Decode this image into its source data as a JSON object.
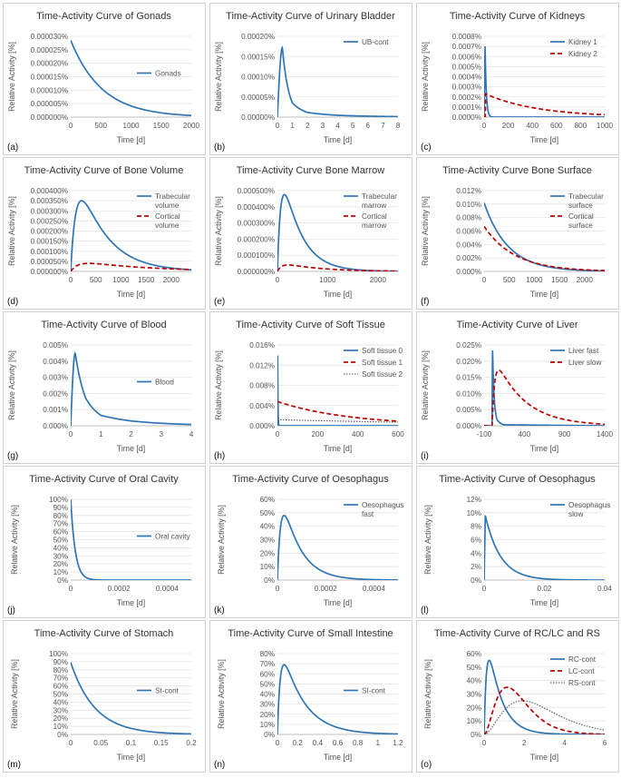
{
  "chart_data": [
    {
      "id": "a",
      "type": "line",
      "panel_label": "(a)",
      "title": "Time-Activity Curve of Gonads",
      "xlabel": "Time [d]",
      "ylabel": "Relative Activity [%]",
      "xticks": [
        "0",
        "500",
        "1000",
        "1500",
        "2000"
      ],
      "xlim": [
        0,
        2000
      ],
      "yticks": [
        "0.000000%",
        "0.000005%",
        "0.000010%",
        "0.000015%",
        "0.000020%",
        "0.000025%",
        "0.000030%"
      ],
      "ylim": [
        0,
        3e-05
      ],
      "legend_position": "center-right",
      "series": [
        {
          "name": "Gonads",
          "color": "#2e75b6",
          "dash": "solid",
          "shape": {
            "kind": "exp_decay",
            "peak_x": 0,
            "peak": 2.85e-05,
            "halflife": 360
          }
        }
      ]
    },
    {
      "id": "b",
      "type": "line",
      "panel_label": "(b)",
      "title": "Time-Activity Curve of Urinary Bladder",
      "xlabel": "Time [d]",
      "ylabel": "Relative Activity [%]",
      "xticks": [
        "0",
        "1",
        "2",
        "3",
        "4",
        "5",
        "6",
        "7",
        "8"
      ],
      "xlim": [
        0,
        8
      ],
      "yticks": [
        "0.00000%",
        "0.00005%",
        "0.00010%",
        "0.00015%",
        "0.00020%"
      ],
      "ylim": [
        0,
        0.0002
      ],
      "legend_position": "top-right",
      "series": [
        {
          "name": "UB-cont",
          "color": "#2e75b6",
          "dash": "solid",
          "shape": {
            "kind": "rise_decay",
            "peak_x": 0.33,
            "peak": 0.000172,
            "tail": [
              [
                1,
                3.5e-05
              ],
              [
                2,
                1.15e-05
              ],
              [
                4,
                4.5e-06
              ],
              [
                8,
                1.2e-06
              ]
            ]
          }
        }
      ]
    },
    {
      "id": "c",
      "type": "line",
      "panel_label": "(c)",
      "title": "Time-Activity Curve of Kidneys",
      "xlabel": "Time [d]",
      "ylabel": "Relative Activity [%]",
      "xticks": [
        "0",
        "200",
        "400",
        "600",
        "800",
        "1000"
      ],
      "xlim": [
        0,
        1000
      ],
      "yticks": [
        "0.0000%",
        "0.0001%",
        "0.0002%",
        "0.0003%",
        "0.0004%",
        "0.0005%",
        "0.0006%",
        "0.0007%",
        "0.0008%"
      ],
      "ylim": [
        0,
        0.0008
      ],
      "legend_position": "top-right",
      "series": [
        {
          "name": "Kidney 1",
          "color": "#2e75b6",
          "dash": "solid",
          "shape": {
            "kind": "spike",
            "peak_x": 8,
            "peak": 0.0007,
            "halflife": 7
          }
        },
        {
          "name": "Kidney 2",
          "color": "#c00000",
          "dash": "dash",
          "shape": {
            "kind": "exp_decay",
            "peak_x": 12,
            "peak": 0.00023,
            "halflife": 300
          }
        }
      ]
    },
    {
      "id": "d",
      "type": "line",
      "panel_label": "(d)",
      "title": "Time-Activity Curve of Bone Volume",
      "xlabel": "Time [d]",
      "ylabel": "Relative Activity [%]",
      "xticks": [
        "0",
        "500",
        "1000",
        "1500",
        "2000"
      ],
      "xlim": [
        0,
        2400
      ],
      "yticks": [
        "0.000000%",
        "0.000050%",
        "0.000100%",
        "0.000150%",
        "0.000200%",
        "0.000250%",
        "0.000300%",
        "0.000350%",
        "0.000400%"
      ],
      "ylim": [
        0,
        0.0004
      ],
      "legend_position": "top-right",
      "series": [
        {
          "name": "Trabecular volume",
          "color": "#2e75b6",
          "dash": "solid",
          "shape": {
            "kind": "bateman",
            "peak_x": 400,
            "peak": 0.00035,
            "halflife": 380
          }
        },
        {
          "name": "Cortical volume",
          "color": "#c00000",
          "dash": "dash",
          "shape": {
            "kind": "bateman",
            "peak_x": 500,
            "peak": 4e-05,
            "halflife": 900
          }
        }
      ]
    },
    {
      "id": "e",
      "type": "line",
      "panel_label": "(e)",
      "title": "Time-Activity Curve Bone Marrow",
      "xlabel": "Time [d]",
      "ylabel": "Relative Activity [%]",
      "xticks": [
        "0",
        "1000",
        "2000"
      ],
      "xlim": [
        0,
        2400
      ],
      "yticks": [
        "0.000000%",
        "0.000100%",
        "0.000200%",
        "0.000300%",
        "0.000400%",
        "0.000500%"
      ],
      "ylim": [
        0,
        0.0005
      ],
      "legend_position": "top-right",
      "series": [
        {
          "name": "Trabecular marrow",
          "color": "#2e75b6",
          "dash": "solid",
          "shape": {
            "kind": "bateman",
            "peak_x": 250,
            "peak": 0.000475,
            "halflife": 250
          }
        },
        {
          "name": "Cortical marrow",
          "color": "#c00000",
          "dash": "dash",
          "shape": {
            "kind": "bateman",
            "peak_x": 300,
            "peak": 4e-05,
            "halflife": 500
          }
        }
      ]
    },
    {
      "id": "f",
      "type": "line",
      "panel_label": "(f)",
      "title": "Time-Activity Curve Bone Surface",
      "xlabel": "Time [d]",
      "ylabel": "Relative Activity [%]",
      "xticks": [
        "0",
        "500",
        "1000",
        "1500",
        "2000"
      ],
      "xlim": [
        0,
        2400
      ],
      "yticks": [
        "0.000%",
        "0.002%",
        "0.004%",
        "0.006%",
        "0.008%",
        "0.010%",
        "0.012%"
      ],
      "ylim": [
        0,
        0.012
      ],
      "legend_position": "top-right",
      "series": [
        {
          "name": "Trabecular surface",
          "color": "#2e75b6",
          "dash": "solid",
          "shape": {
            "kind": "exp_decay",
            "peak_x": 0,
            "peak": 0.0102,
            "halflife": 330
          }
        },
        {
          "name": "Cortical surface",
          "color": "#c00000",
          "dash": "dash",
          "shape": {
            "kind": "exp_decay",
            "peak_x": 0,
            "peak": 0.0067,
            "halflife": 420
          }
        }
      ]
    },
    {
      "id": "g",
      "type": "line",
      "panel_label": "(g)",
      "title": "Time-Activity Curve of Blood",
      "xlabel": "Time [d]",
      "ylabel": "Relative Activity [%]",
      "xticks": [
        "0",
        "1",
        "2",
        "3",
        "4"
      ],
      "xlim": [
        0,
        4
      ],
      "yticks": [
        "0.000%",
        "0.001%",
        "0.002%",
        "0.003%",
        "0.004%",
        "0.005%"
      ],
      "ylim": [
        0,
        0.005
      ],
      "legend_position": "center-right",
      "series": [
        {
          "name": "Blood",
          "color": "#2e75b6",
          "dash": "solid",
          "shape": {
            "kind": "rise_decay",
            "peak_x": 0.15,
            "peak": 0.0045,
            "tail": [
              [
                0.5,
                0.0017
              ],
              [
                1,
                0.00065
              ],
              [
                2,
                0.0003
              ],
              [
                4,
                8e-05
              ]
            ]
          }
        }
      ]
    },
    {
      "id": "h",
      "type": "line",
      "panel_label": "(h)",
      "title": "Time-Activity Curve of Soft Tissue",
      "xlabel": "Time [d]",
      "ylabel": "Relative Activity [%]",
      "xticks": [
        "0",
        "200",
        "400",
        "600"
      ],
      "xlim": [
        0,
        600
      ],
      "yticks": [
        "0.000%",
        "0.004%",
        "0.008%",
        "0.012%",
        "0.016%"
      ],
      "ylim": [
        0,
        0.016
      ],
      "legend_position": "top-right",
      "series": [
        {
          "name": "Soft tissue 0",
          "color": "#2e75b6",
          "dash": "solid",
          "shape": {
            "kind": "spike",
            "peak_x": 1,
            "peak": 0.016,
            "halflife": 1
          }
        },
        {
          "name": "Soft tissue 1",
          "color": "#c00000",
          "dash": "dash",
          "shape": {
            "kind": "exp_decay",
            "peak_x": 0,
            "peak": 0.0048,
            "halflife": 250
          }
        },
        {
          "name": "Soft tissue 2",
          "color": "#555555",
          "dash": "dot",
          "shape": {
            "kind": "exp_decay",
            "peak_x": 0,
            "peak": 0.0012,
            "halflife": 800
          }
        }
      ]
    },
    {
      "id": "i",
      "type": "line",
      "panel_label": "(i)",
      "title": "Time-Activity Curve of Liver",
      "xlabel": "Time [d]",
      "ylabel": "Relative Activity [%]",
      "xticks": [
        "-100",
        "400",
        "900",
        "1400"
      ],
      "xlim": [
        -100,
        1400
      ],
      "yticks": [
        "0.000%",
        "0.005%",
        "0.010%",
        "0.015%",
        "0.020%",
        "0.025%"
      ],
      "ylim": [
        0,
        0.025
      ],
      "legend_position": "top-right",
      "series": [
        {
          "name": "Liver fast",
          "color": "#2e75b6",
          "dash": "solid",
          "shape": {
            "kind": "rise_decay",
            "peak_x": 5,
            "peak": 0.0233,
            "tail": [
              [
                30,
                0.007
              ],
              [
                60,
                0.002
              ],
              [
                150,
                0.0003
              ],
              [
                1400,
                0
              ]
            ]
          }
        },
        {
          "name": "Liver slow",
          "color": "#c00000",
          "dash": "dash",
          "shape": {
            "kind": "bateman",
            "peak_x": 100,
            "peak": 0.0172,
            "halflife": 250
          }
        }
      ]
    },
    {
      "id": "j",
      "type": "line",
      "panel_label": "(j)",
      "title": "Time-Activity Curve of Oral Cavity",
      "xlabel": "Time [d]",
      "ylabel": "Relative Activity [%]",
      "xticks": [
        "0",
        "0.0002",
        "0.0004"
      ],
      "xlim": [
        0,
        0.0005
      ],
      "yticks": [
        "0%",
        "10%",
        "20%",
        "30%",
        "40%",
        "50%",
        "60%",
        "70%",
        "80%",
        "90%",
        "100%"
      ],
      "ylim": [
        0,
        100
      ],
      "legend_position": "center-right",
      "series": [
        {
          "name": "Oral cavity",
          "color": "#2e75b6",
          "dash": "solid",
          "shape": {
            "kind": "exp_decay",
            "peak_x": 0,
            "peak": 100,
            "halflife": 1.3e-05
          }
        }
      ]
    },
    {
      "id": "k",
      "type": "line",
      "panel_label": "(k)",
      "title": "Time-Activity Curve of Oesophagus",
      "xlabel": "Time [d]",
      "ylabel": "Relative Activity [%]",
      "xticks": [
        "0",
        "0.0002",
        "0.0004"
      ],
      "xlim": [
        0,
        0.0005
      ],
      "yticks": [
        "0%",
        "10%",
        "20%",
        "30%",
        "40%",
        "50%",
        "60%"
      ],
      "ylim": [
        0,
        60
      ],
      "legend_position": "top-right",
      "series": [
        {
          "name": "Oesophagus fast",
          "color": "#2e75b6",
          "dash": "solid",
          "shape": {
            "kind": "bateman",
            "peak_x": 5e-05,
            "peak": 48,
            "halflife": 5e-05
          }
        }
      ]
    },
    {
      "id": "l",
      "type": "line",
      "panel_label": "(l)",
      "title": "Time-Activity Curve of Oesophagus",
      "xlabel": "Time [d]",
      "ylabel": "Relative Activity [%]",
      "xticks": [
        "0",
        "0.02",
        "0.04"
      ],
      "xlim": [
        0,
        0.04
      ],
      "yticks": [
        "0%",
        "2%",
        "4%",
        "6%",
        "8%",
        "10%",
        "12%"
      ],
      "ylim": [
        0,
        12
      ],
      "legend_position": "top-right",
      "series": [
        {
          "name": "Oesophagus slow",
          "color": "#2e75b6",
          "dash": "solid",
          "shape": {
            "kind": "spike",
            "peak_x": 0.0004,
            "peak": 9.6,
            "halflife": 0.0035
          }
        }
      ]
    },
    {
      "id": "m",
      "type": "line",
      "panel_label": "(m)",
      "title": "Time-Activity Curve of Stomach",
      "xlabel": "Time [d]",
      "ylabel": "Relative Activity [%]",
      "xticks": [
        "0",
        "0.05",
        "0.1",
        "0.15",
        "0.2"
      ],
      "xlim": [
        0,
        0.2
      ],
      "yticks": [
        "0%",
        "10%",
        "20%",
        "30%",
        "40%",
        "50%",
        "60%",
        "70%",
        "80%",
        "90%",
        "100%"
      ],
      "ylim": [
        0,
        100
      ],
      "legend_position": "center-right",
      "series": [
        {
          "name": "St-cont",
          "color": "#2e75b6",
          "dash": "solid",
          "shape": {
            "kind": "exp_decay",
            "peak_x": 0,
            "peak": 89,
            "halflife": 0.028
          }
        }
      ]
    },
    {
      "id": "n",
      "type": "line",
      "panel_label": "(n)",
      "title": "Time-Activity Curve of Small Intestine",
      "xlabel": "Time [d]",
      "ylabel": "Relative Activity [%]",
      "xticks": [
        "0",
        "0.2",
        "0.4",
        "0.6",
        "0.8",
        "1",
        "1.2"
      ],
      "xlim": [
        0,
        1.2
      ],
      "yticks": [
        "0%",
        "10%",
        "20%",
        "30%",
        "40%",
        "50%",
        "60%",
        "70%",
        "80%"
      ],
      "ylim": [
        0,
        80
      ],
      "legend_position": "center-right",
      "series": [
        {
          "name": "SI-cont",
          "color": "#2e75b6",
          "dash": "solid",
          "shape": {
            "kind": "bateman",
            "peak_x": 0.1,
            "peak": 69,
            "halflife": 0.15
          }
        }
      ]
    },
    {
      "id": "o",
      "type": "line",
      "panel_label": "(o)",
      "title": "Time-Activity Curve of RC/LC and RS",
      "xlabel": "Time [d]",
      "ylabel": "Relative Activity [%]",
      "xticks": [
        "0",
        "2",
        "4",
        "6"
      ],
      "xlim": [
        0,
        6
      ],
      "yticks": [
        "0%",
        "10%",
        "20%",
        "30%",
        "40%",
        "50%",
        "60%"
      ],
      "ylim": [
        0,
        60
      ],
      "legend_position": "top-right",
      "series": [
        {
          "name": "RC-cont",
          "color": "#2e75b6",
          "dash": "solid",
          "shape": {
            "kind": "bateman",
            "peak_x": 0.45,
            "peak": 55,
            "halflife": 0.45
          }
        },
        {
          "name": "LC-cont",
          "color": "#c00000",
          "dash": "dash",
          "shape": {
            "kind": "gamma",
            "peak_x": 1.15,
            "peak": 35,
            "k": 3
          }
        },
        {
          "name": "RS-cont",
          "color": "#555555",
          "dash": "dot",
          "shape": {
            "kind": "gamma",
            "peak_x": 1.9,
            "peak": 25,
            "k": 3
          }
        }
      ]
    }
  ]
}
